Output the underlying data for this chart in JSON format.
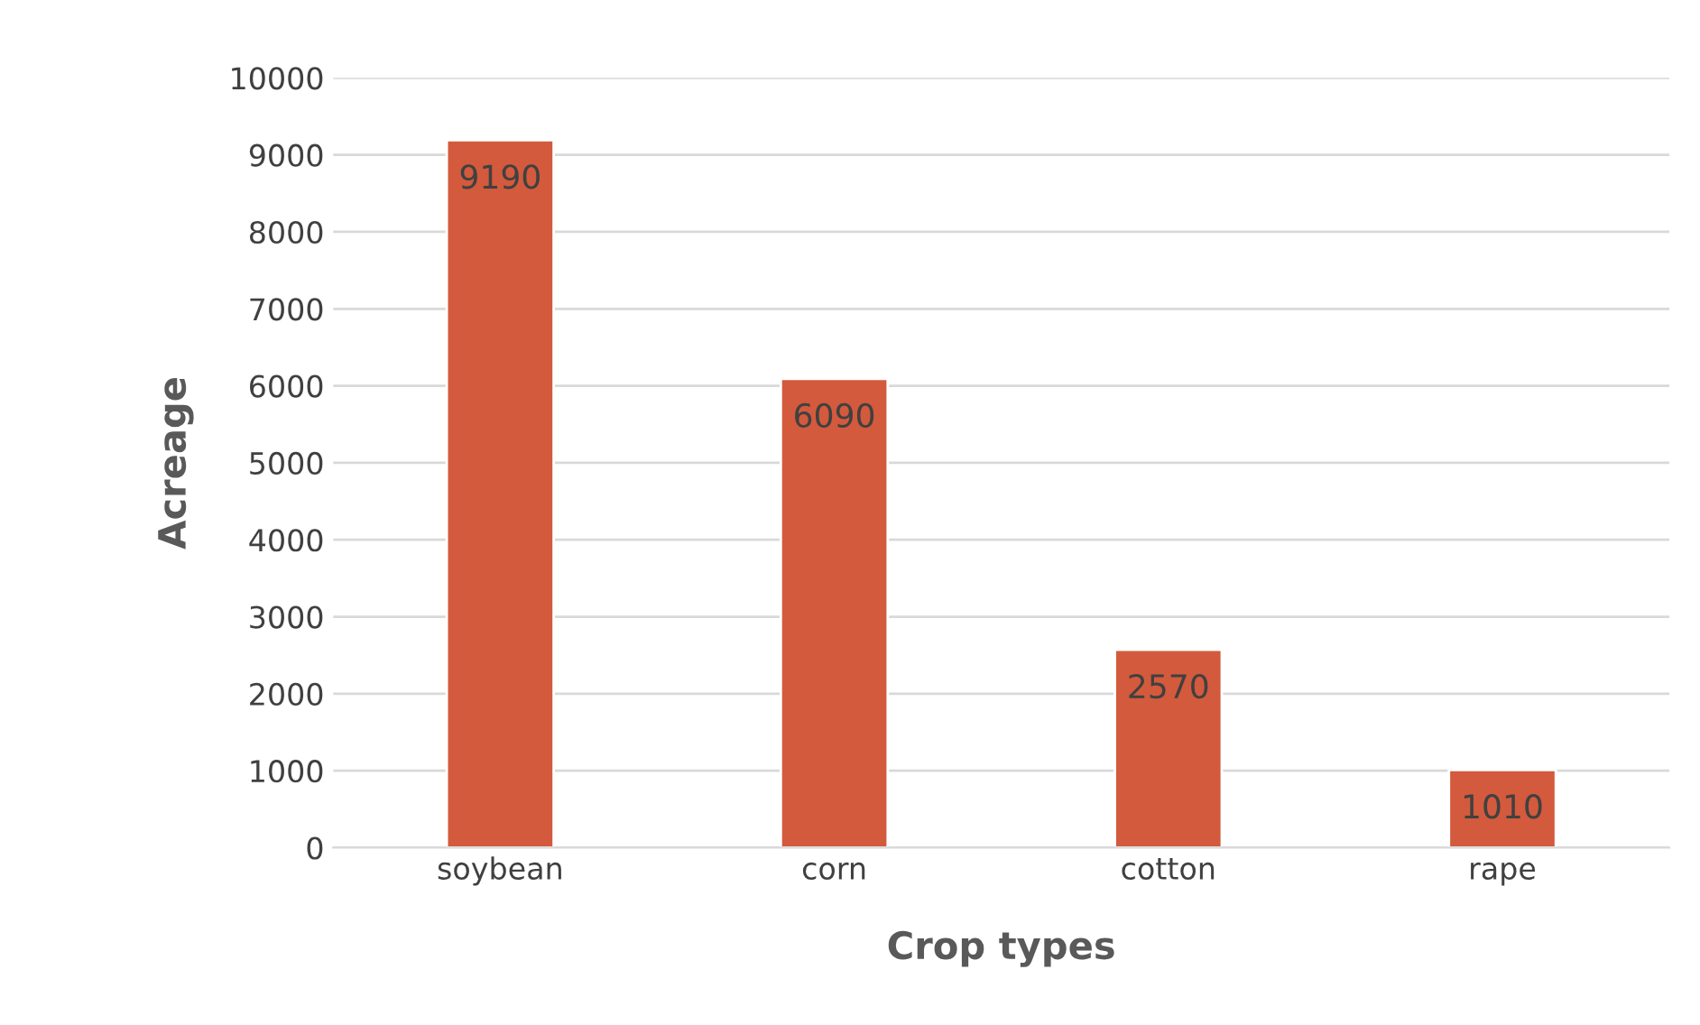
{
  "chart_data": {
    "type": "bar",
    "xlabel": "Crop types",
    "ylabel": "Acreage",
    "categories": [
      "soybean",
      "corn",
      "cotton",
      "rape"
    ],
    "values": [
      9190,
      6090,
      2570,
      1010
    ],
    "color": "#d35a3c",
    "ylim": [
      0,
      10000
    ],
    "yticks": [
      0,
      1000,
      2000,
      3000,
      4000,
      5000,
      6000,
      7000,
      8000,
      9000,
      10000
    ],
    "grid": "y",
    "data_labels": true
  }
}
